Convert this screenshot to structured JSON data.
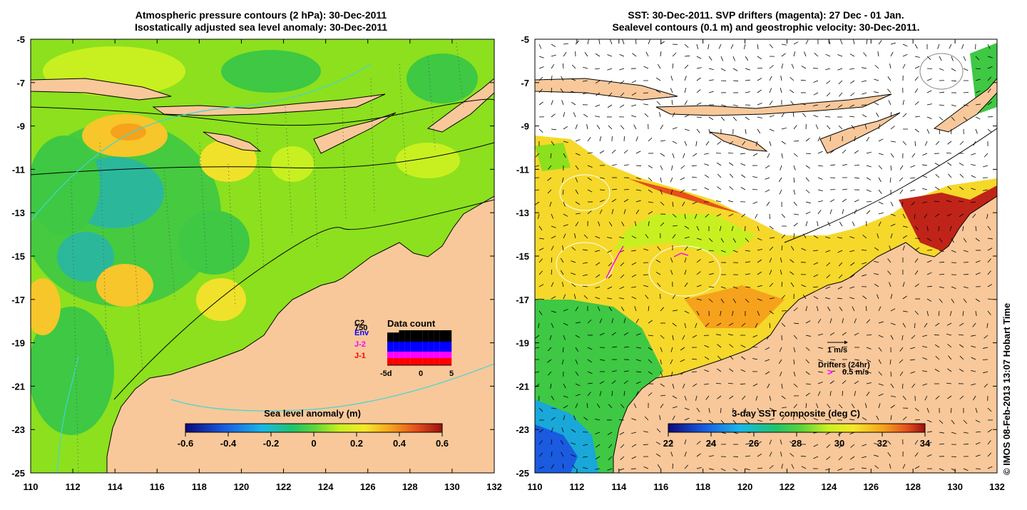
{
  "left_panel": {
    "title_line1": "Atmospheric pressure contours (2 hPa): 30-Dec-2011",
    "title_line2": "Isostatically adjusted sea level anomaly: 30-Dec-2011",
    "x_ticks": [
      "110",
      "112",
      "114",
      "116",
      "118",
      "120",
      "122",
      "124",
      "126",
      "128",
      "130",
      "132"
    ],
    "y_ticks": [
      "-5",
      "-7",
      "-9",
      "-11",
      "-13",
      "-15",
      "-17",
      "-19",
      "-21",
      "-23",
      "-25"
    ],
    "colorbar": {
      "label": "Sea level anomaly (m)",
      "ticks": [
        "-0.6",
        "-0.4",
        "-0.2",
        "0",
        "0.2",
        "0.4",
        "0.6"
      ],
      "range": [
        -0.6,
        0.6
      ]
    },
    "legend": {
      "c2_label": "C2",
      "c2_count": "750",
      "env_label": "Env",
      "j2_label": "J-2",
      "j1_label": "J-1",
      "data_count_title": "Data count",
      "axis_left": "-5d",
      "axis_mid": "0",
      "axis_right": "5",
      "colors": {
        "c2": "#000000",
        "env": "#0000ff",
        "j2": "#ff00ff",
        "j1": "#ff0000"
      }
    }
  },
  "right_panel": {
    "title_line1": "SST: 30-Dec-2011. SVP drifters (magenta): 27 Dec - 01 Jan.",
    "title_line2": "Sealevel contours (0.1 m) and geostrophic velocity: 30-Dec-2011.",
    "x_ticks": [
      "110",
      "112",
      "114",
      "116",
      "118",
      "120",
      "122",
      "124",
      "126",
      "128",
      "130",
      "132"
    ],
    "y_ticks": [
      "-5",
      "-7",
      "-9",
      "-11",
      "-13",
      "-15",
      "-17",
      "-19",
      "-21",
      "-23",
      "-25"
    ],
    "colorbar": {
      "label": "3-day SST composite (deg C)",
      "ticks": [
        "22",
        "24",
        "26",
        "28",
        "30",
        "32",
        "34"
      ],
      "range": [
        22,
        34
      ]
    },
    "velocity_scale_label": "1 m/s",
    "drifters_label": "Drifters (24hr)",
    "drifter_scale_label": "0.5 m/s"
  },
  "credit": "© IMOS 08-Feb-2013 13:07 Hobart Time",
  "colors": {
    "land": "#f8c89a",
    "drifter": "#ff00ff",
    "contour_cyan": "#3fd6d6"
  }
}
